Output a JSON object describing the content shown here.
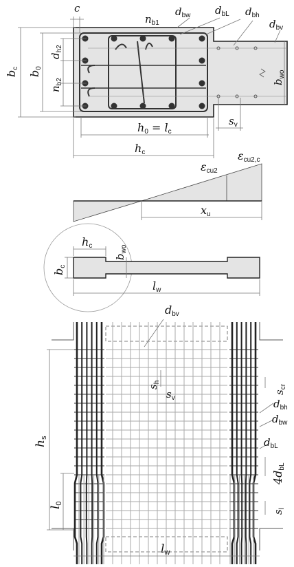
{
  "section": {
    "labels": {
      "c": {
        "main": "c",
        "sub": ""
      },
      "n_b1": {
        "main": "n",
        "sub": "b1"
      },
      "d_bw": {
        "main": "d",
        "sub": "bw"
      },
      "d_bL": {
        "main": "d",
        "sub": "bL"
      },
      "d_bh": {
        "main": "d",
        "sub": "bh"
      },
      "d_bv": {
        "main": "d",
        "sub": "bv"
      },
      "b_c": {
        "main": "b",
        "sub": "c"
      },
      "b_0": {
        "main": "b",
        "sub": "0"
      },
      "d_h2": {
        "main": "d",
        "sub": "h2"
      },
      "n_b2": {
        "main": "n",
        "sub": "b2"
      },
      "b_wo": {
        "main": "b",
        "sub": "wo"
      },
      "s_v": {
        "main": "s",
        "sub": "v"
      },
      "h0_eq": {
        "main": "h",
        "sub": "0",
        "rest": " = l",
        "rest_sub": "c"
      },
      "h_c": {
        "main": "h",
        "sub": "c"
      }
    }
  },
  "strain": {
    "labels": {
      "eps_cu2": {
        "main": "ε",
        "sub": "cu2"
      },
      "eps_cu2c": {
        "main": "ε",
        "sub": "cu2,c"
      },
      "x_u": {
        "main": "x",
        "sub": "u"
      }
    }
  },
  "wall_plan": {
    "labels": {
      "h_c": {
        "main": "h",
        "sub": "c"
      },
      "b_wo": {
        "main": "b",
        "sub": "wo"
      },
      "b_c": {
        "main": "b",
        "sub": "c"
      },
      "l_w": {
        "main": "l",
        "sub": "w"
      }
    }
  },
  "elevation": {
    "labels": {
      "d_bv": {
        "main": "d",
        "sub": "bv"
      },
      "s_h": {
        "main": "s",
        "sub": "h"
      },
      "s_v": {
        "main": "s",
        "sub": "v"
      },
      "s_cr": {
        "main": "s",
        "sub": "cr"
      },
      "d_bh": {
        "main": "d",
        "sub": "bh"
      },
      "d_bw": {
        "main": "d",
        "sub": "bw"
      },
      "d_bL": {
        "main": "d",
        "sub": "bL"
      },
      "four_d_bL": {
        "main": "4d",
        "sub": "bL"
      },
      "s_l": {
        "main": "s",
        "sub": "l"
      },
      "h_s": {
        "main": "h",
        "sub": "s"
      },
      "l_0": {
        "main": "l",
        "sub": "0"
      },
      "l_w": {
        "main": "l",
        "sub": "w"
      }
    }
  }
}
